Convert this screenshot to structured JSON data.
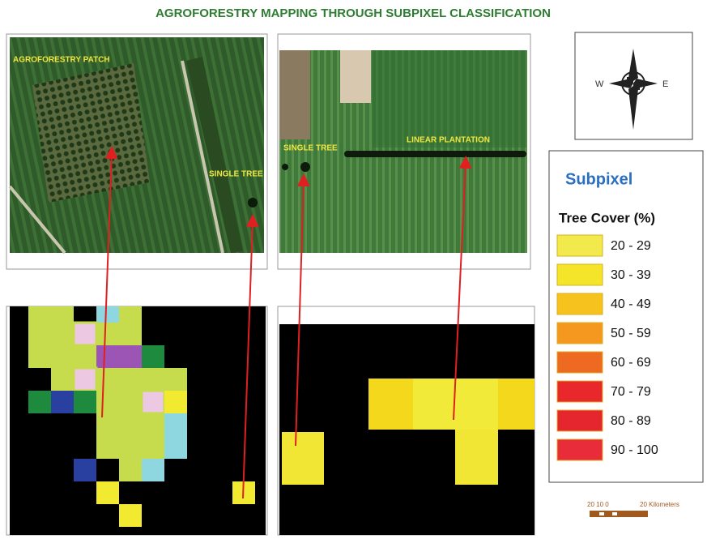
{
  "title": "AGROFORESTRY MAPPING THROUGH SUBPIXEL CLASSIFICATION",
  "photo_labels": [
    "AGROFORESTRY PATCH",
    "SINGLE TREE",
    "SINGLE TREE",
    "LINEAR PLANTATION"
  ],
  "compass": {
    "west": "W",
    "east": "E"
  },
  "legend": {
    "title": "Subpixel",
    "subtitle": "Tree Cover (%)",
    "classes": [
      {
        "label": "20 - 29",
        "color": "#f2ea4c"
      },
      {
        "label": "30 - 39",
        "color": "#f4e42a"
      },
      {
        "label": "40 - 49",
        "color": "#f6c21e"
      },
      {
        "label": "50 - 59",
        "color": "#f5981f"
      },
      {
        "label": "60 - 69",
        "color": "#ee6a22"
      },
      {
        "label": "70 - 79",
        "color": "#e8282a"
      },
      {
        "label": "80 - 89",
        "color": "#e6262e"
      },
      {
        "label": "90 - 100",
        "color": "#e82c3a"
      }
    ]
  },
  "scale_bar": {
    "ticks": "20 10 0",
    "unit": "20 Kilometers"
  }
}
